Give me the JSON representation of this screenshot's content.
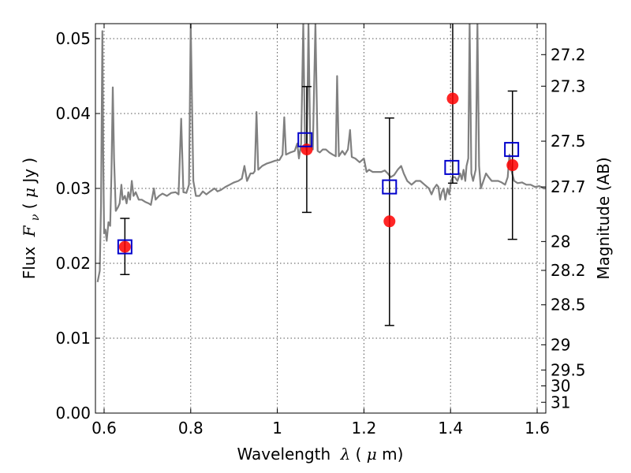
{
  "chart_data": {
    "type": "scatter",
    "title": "",
    "xlabel_text": "Wavelength",
    "xlabel_symbol": "λ",
    "xlabel_unit_open": " (",
    "xlabel_unit_mu": "μ",
    "xlabel_unit_close": "m)",
    "ylabel_text": "Flux",
    "ylabel_symbol": "F",
    "ylabel_sub": "ν",
    "ylabel_unit_open": " ( ",
    "ylabel_unit_mu": "μ",
    "ylabel_unit_close": "Jy )",
    "y2label": "Magnitude (AB)",
    "xlim": [
      0.58,
      1.62
    ],
    "ylim": [
      0.0,
      0.052
    ],
    "xticks": [
      0.6,
      0.8,
      1.0,
      1.2,
      1.4,
      1.6
    ],
    "xtick_labels": [
      "0.6",
      "0.8",
      "1",
      "1.2",
      "1.4",
      "1.6"
    ],
    "yticks": [
      0.0,
      0.01,
      0.02,
      0.03,
      0.04,
      0.05
    ],
    "ytick_labels": [
      "0.00",
      "0.01",
      "0.02",
      "0.03",
      "0.04",
      "0.05"
    ],
    "mag_ticks": [
      27.2,
      27.3,
      27.5,
      27.7,
      28,
      28.2,
      28.5,
      29,
      29.5,
      30,
      31
    ],
    "mag_tick_labels": [
      "27.2",
      "27.3",
      "27.5",
      "27.7",
      "28",
      "28.2",
      "28.5",
      "29",
      "29.5",
      "30",
      "31"
    ],
    "grid": true,
    "colors": {
      "model_spectrum": "#808080",
      "observed": "#ff0000",
      "model_photometry": "#0000cc",
      "error_bars": "#000000",
      "grid": "#555555"
    },
    "series": [
      {
        "kind": "line",
        "points": [
          [
            0.585,
            0.0175
          ],
          [
            0.59,
            0.019
          ],
          [
            0.593,
            0.028
          ],
          [
            0.596,
            0.051
          ],
          [
            0.598,
            0.034
          ],
          [
            0.6,
            0.024
          ],
          [
            0.603,
            0.0245
          ],
          [
            0.606,
            0.023
          ],
          [
            0.61,
            0.0255
          ],
          [
            0.614,
            0.025
          ],
          [
            0.617,
            0.032
          ],
          [
            0.62,
            0.0435
          ],
          [
            0.623,
            0.034
          ],
          [
            0.627,
            0.027
          ],
          [
            0.632,
            0.0275
          ],
          [
            0.636,
            0.028
          ],
          [
            0.64,
            0.0305
          ],
          [
            0.643,
            0.0285
          ],
          [
            0.648,
            0.029
          ],
          [
            0.652,
            0.028
          ],
          [
            0.656,
            0.0295
          ],
          [
            0.66,
            0.0285
          ],
          [
            0.664,
            0.031
          ],
          [
            0.668,
            0.029
          ],
          [
            0.673,
            0.0295
          ],
          [
            0.68,
            0.0285
          ],
          [
            0.687,
            0.0285
          ],
          [
            0.695,
            0.0282
          ],
          [
            0.703,
            0.028
          ],
          [
            0.708,
            0.0278
          ],
          [
            0.715,
            0.03
          ],
          [
            0.719,
            0.0285
          ],
          [
            0.727,
            0.029
          ],
          [
            0.735,
            0.0293
          ],
          [
            0.745,
            0.029
          ],
          [
            0.755,
            0.0294
          ],
          [
            0.765,
            0.0295
          ],
          [
            0.772,
            0.0292
          ],
          [
            0.778,
            0.0393
          ],
          [
            0.783,
            0.0295
          ],
          [
            0.79,
            0.0294
          ],
          [
            0.796,
            0.0305
          ],
          [
            0.8,
            0.052
          ],
          [
            0.806,
            0.031
          ],
          [
            0.812,
            0.029
          ],
          [
            0.82,
            0.029
          ],
          [
            0.828,
            0.0296
          ],
          [
            0.836,
            0.0292
          ],
          [
            0.845,
            0.0296
          ],
          [
            0.855,
            0.03
          ],
          [
            0.862,
            0.0296
          ],
          [
            0.87,
            0.0298
          ],
          [
            0.88,
            0.0302
          ],
          [
            0.89,
            0.0305
          ],
          [
            0.9,
            0.0308
          ],
          [
            0.91,
            0.031
          ],
          [
            0.918,
            0.0313
          ],
          [
            0.924,
            0.033
          ],
          [
            0.93,
            0.031
          ],
          [
            0.938,
            0.032
          ],
          [
            0.944,
            0.032
          ],
          [
            0.948,
            0.0323
          ],
          [
            0.952,
            0.0402
          ],
          [
            0.956,
            0.0325
          ],
          [
            0.965,
            0.033
          ],
          [
            0.975,
            0.0333
          ],
          [
            0.985,
            0.0335
          ],
          [
            0.995,
            0.0337
          ],
          [
            1.005,
            0.0338
          ],
          [
            1.012,
            0.0345
          ],
          [
            1.016,
            0.0395
          ],
          [
            1.02,
            0.0345
          ],
          [
            1.03,
            0.0348
          ],
          [
            1.04,
            0.035
          ],
          [
            1.046,
            0.036
          ],
          [
            1.05,
            0.034
          ],
          [
            1.055,
            0.036
          ],
          [
            1.06,
            0.052
          ],
          [
            1.064,
            0.036
          ],
          [
            1.068,
            0.035
          ],
          [
            1.072,
            0.052
          ],
          [
            1.076,
            0.036
          ],
          [
            1.082,
            0.0352
          ],
          [
            1.088,
            0.052
          ],
          [
            1.093,
            0.035
          ],
          [
            1.098,
            0.0348
          ],
          [
            1.105,
            0.0352
          ],
          [
            1.112,
            0.0352
          ],
          [
            1.12,
            0.0348
          ],
          [
            1.128,
            0.0345
          ],
          [
            1.135,
            0.0343
          ],
          [
            1.138,
            0.045
          ],
          [
            1.142,
            0.0343
          ],
          [
            1.15,
            0.035
          ],
          [
            1.156,
            0.0345
          ],
          [
            1.163,
            0.0352
          ],
          [
            1.168,
            0.0378
          ],
          [
            1.172,
            0.0342
          ],
          [
            1.18,
            0.034
          ],
          [
            1.19,
            0.0335
          ],
          [
            1.2,
            0.034
          ],
          [
            1.206,
            0.0322
          ],
          [
            1.212,
            0.0325
          ],
          [
            1.22,
            0.0322
          ],
          [
            1.23,
            0.0322
          ],
          [
            1.24,
            0.0322
          ],
          [
            1.248,
            0.0324
          ],
          [
            1.255,
            0.032
          ],
          [
            1.262,
            0.0315
          ],
          [
            1.27,
            0.0318
          ],
          [
            1.278,
            0.0325
          ],
          [
            1.286,
            0.033
          ],
          [
            1.292,
            0.032
          ],
          [
            1.3,
            0.031
          ],
          [
            1.31,
            0.0305
          ],
          [
            1.32,
            0.031
          ],
          [
            1.33,
            0.031
          ],
          [
            1.34,
            0.0305
          ],
          [
            1.35,
            0.03
          ],
          [
            1.356,
            0.0292
          ],
          [
            1.362,
            0.03
          ],
          [
            1.368,
            0.0305
          ],
          [
            1.372,
            0.0302
          ],
          [
            1.376,
            0.0285
          ],
          [
            1.38,
            0.0295
          ],
          [
            1.384,
            0.03
          ],
          [
            1.388,
            0.0285
          ],
          [
            1.393,
            0.03
          ],
          [
            1.397,
            0.0292
          ],
          [
            1.401,
            0.031
          ],
          [
            1.405,
            0.0315
          ],
          [
            1.41,
            0.0315
          ],
          [
            1.416,
            0.031
          ],
          [
            1.422,
            0.032
          ],
          [
            1.426,
            0.0312
          ],
          [
            1.43,
            0.0325
          ],
          [
            1.434,
            0.031
          ],
          [
            1.437,
            0.033
          ],
          [
            1.441,
            0.034
          ],
          [
            1.444,
            0.052
          ],
          [
            1.448,
            0.032
          ],
          [
            1.452,
            0.031
          ],
          [
            1.458,
            0.0325
          ],
          [
            1.462,
            0.052
          ],
          [
            1.466,
            0.033
          ],
          [
            1.47,
            0.03
          ],
          [
            1.476,
            0.031
          ],
          [
            1.482,
            0.032
          ],
          [
            1.488,
            0.0315
          ],
          [
            1.495,
            0.031
          ],
          [
            1.502,
            0.031
          ],
          [
            1.51,
            0.031
          ],
          [
            1.518,
            0.0308
          ],
          [
            1.526,
            0.0305
          ],
          [
            1.532,
            0.0315
          ],
          [
            1.536,
            0.0345
          ],
          [
            1.54,
            0.0325
          ],
          [
            1.547,
            0.031
          ],
          [
            1.555,
            0.0307
          ],
          [
            1.565,
            0.0308
          ],
          [
            1.575,
            0.0305
          ],
          [
            1.585,
            0.0305
          ],
          [
            1.595,
            0.0302
          ],
          [
            1.605,
            0.0303
          ],
          [
            1.615,
            0.03
          ],
          [
            1.62,
            0.03
          ]
        ]
      },
      {
        "kind": "errorbar",
        "points": [
          {
            "x": 0.648,
            "y": 0.0222,
            "ylo": 0.0185,
            "yhi": 0.026
          },
          {
            "x": 1.068,
            "y": 0.0352,
            "ylo": 0.0268,
            "yhi": 0.0436
          },
          {
            "x": 1.259,
            "y": 0.0256,
            "ylo": 0.0117,
            "yhi": 0.0394
          },
          {
            "x": 1.405,
            "y": 0.042,
            "ylo": 0.0307,
            "yhi": 0.052
          },
          {
            "x": 1.543,
            "y": 0.0331,
            "ylo": 0.0232,
            "yhi": 0.043
          }
        ]
      },
      {
        "kind": "squares",
        "points": [
          {
            "x": 0.648,
            "y": 0.0222
          },
          {
            "x": 1.064,
            "y": 0.0365
          },
          {
            "x": 1.259,
            "y": 0.0302
          },
          {
            "x": 1.403,
            "y": 0.0328
          },
          {
            "x": 1.541,
            "y": 0.0352
          }
        ]
      }
    ]
  }
}
